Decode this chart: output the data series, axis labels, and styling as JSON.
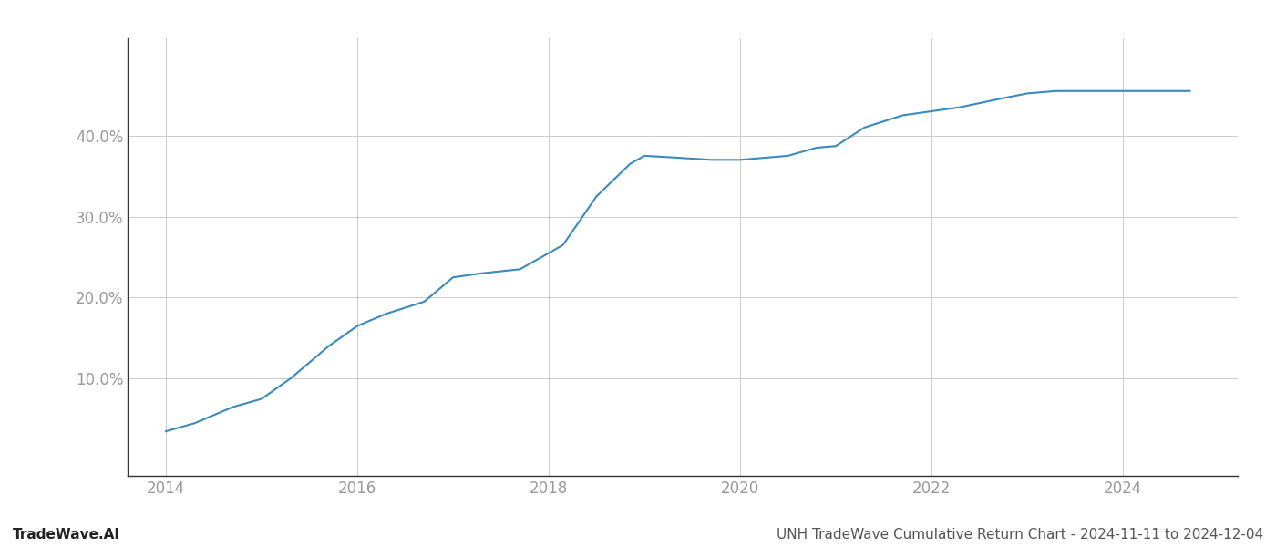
{
  "x_years": [
    2014.0,
    2014.3,
    2014.7,
    2015.0,
    2015.3,
    2015.7,
    2016.0,
    2016.3,
    2016.7,
    2017.0,
    2017.3,
    2017.7,
    2018.0,
    2018.15,
    2018.5,
    2018.85,
    2019.0,
    2019.3,
    2019.7,
    2020.0,
    2020.2,
    2020.5,
    2020.8,
    2021.0,
    2021.3,
    2021.7,
    2022.0,
    2022.3,
    2022.7,
    2023.0,
    2023.3,
    2023.7,
    2024.0,
    2024.3,
    2024.7
  ],
  "y_values": [
    3.5,
    4.5,
    6.5,
    7.5,
    10.0,
    14.0,
    16.5,
    18.0,
    19.5,
    22.5,
    23.0,
    23.5,
    25.5,
    26.5,
    32.5,
    36.5,
    37.5,
    37.3,
    37.0,
    37.0,
    37.2,
    37.5,
    38.5,
    38.7,
    41.0,
    42.5,
    43.0,
    43.5,
    44.5,
    45.2,
    45.5,
    45.5,
    45.5,
    45.5,
    45.5
  ],
  "line_color": "#3a8abf",
  "line_width": 1.5,
  "background_color": "#ffffff",
  "grid_color": "#cccccc",
  "ytick_values": [
    10,
    20,
    30,
    40
  ],
  "xtick_values": [
    2014,
    2016,
    2018,
    2020,
    2022,
    2024
  ],
  "xlim": [
    2013.6,
    2025.2
  ],
  "ylim": [
    -2,
    52
  ],
  "tick_color": "#999999",
  "left_spine_color": "#333333",
  "bottom_spine_color": "#333333",
  "footer_left": "TradeWave.AI",
  "footer_right": "UNH TradeWave Cumulative Return Chart - 2024-11-11 to 2024-12-04",
  "footer_font_size": 11,
  "tick_fontsize": 12
}
